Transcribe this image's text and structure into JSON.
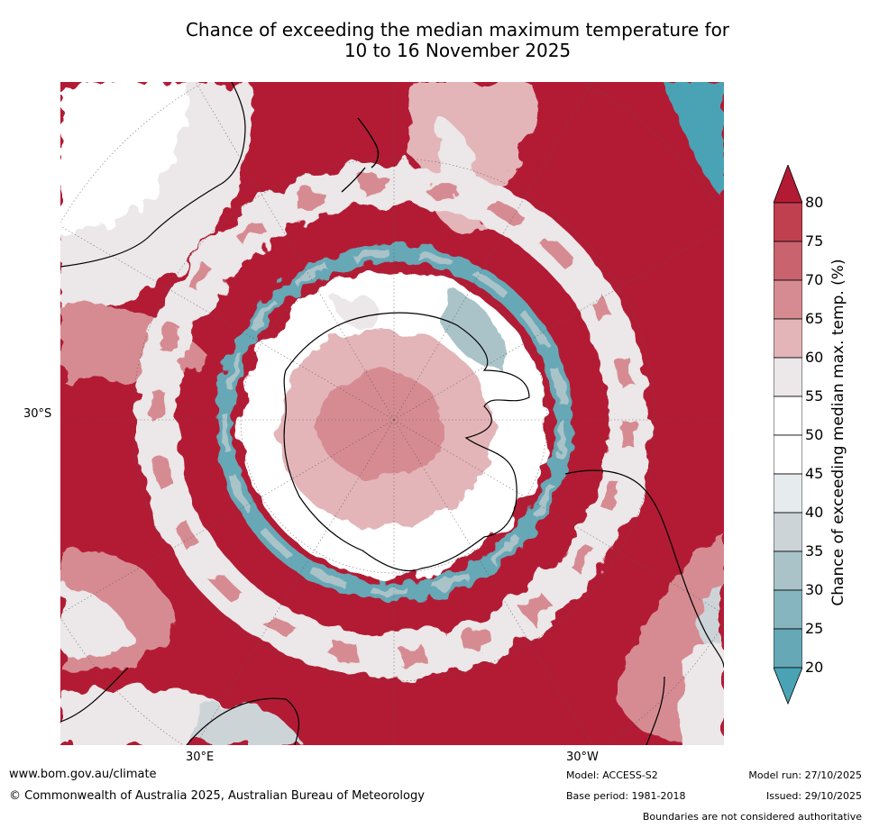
{
  "title": {
    "line1": "Chance of exceeding the median maximum temperature for",
    "line2": "10 to 16 November 2025"
  },
  "map": {
    "projection": "south polar stereographic",
    "lat_label": "30°S",
    "lon_label_east": "30°E",
    "lon_label_west": "30°W"
  },
  "colorbar": {
    "label": "Chance of exceeding median max. temp. (%)",
    "ticks": [
      "80",
      "75",
      "70",
      "65",
      "60",
      "55",
      "50",
      "45",
      "40",
      "35",
      "30",
      "25",
      "20"
    ],
    "colors": {
      "above_80": "#b31b34",
      "75_80": "#c0404f",
      "70_75": "#c9636e",
      "65_70": "#d68b92",
      "60_65": "#e3b5b8",
      "55_60": "#ece7e8",
      "50_55": "#ffffff",
      "45_50": "#ffffff",
      "40_45": "#e6ebee",
      "35_40": "#cdd4d8",
      "30_35": "#a9c3c9",
      "25_30": "#86b5bf",
      "20_25": "#66a8b6",
      "below_20": "#4aa3b5"
    }
  },
  "footer": {
    "website": "www.bom.gov.au/climate",
    "copyright": "© Commonwealth of Australia 2025, Australian Bureau of Meteorology",
    "model": "Model: ACCESS-S2",
    "base_period": "Base period: 1981-2018",
    "model_run": "Model run: 27/10/2025",
    "issued": "Issued: 29/10/2025",
    "disclaimer": "Boundaries are not considered authoritative"
  }
}
